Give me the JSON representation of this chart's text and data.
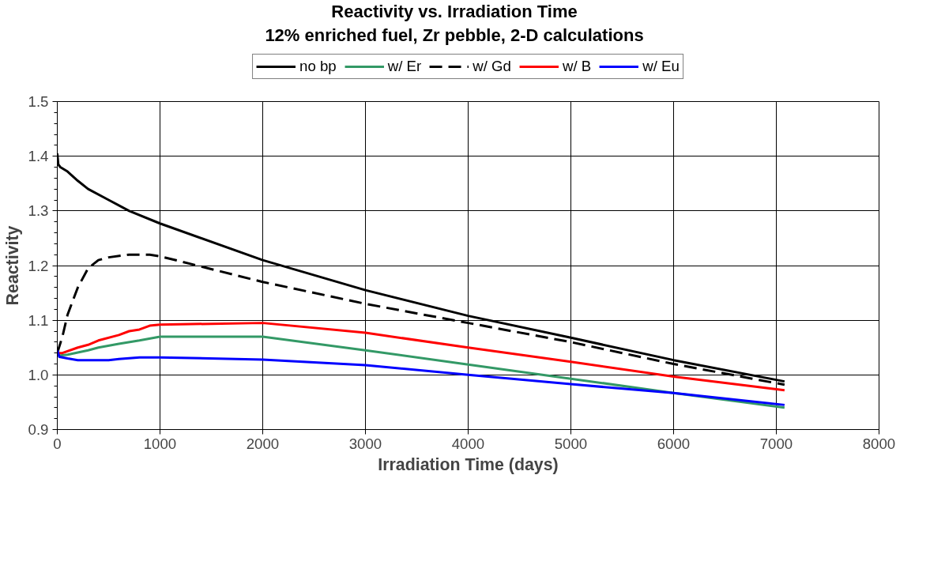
{
  "chart_data": {
    "type": "line",
    "title": "Reactivity vs. Irradiation Time",
    "subtitle": "12% enriched fuel, Zr pebble, 2-D calculations",
    "xlabel": "Irradiation Time (days)",
    "ylabel": "Reactivity",
    "xlim": [
      0,
      8000
    ],
    "xticks": [
      0,
      1000,
      2000,
      3000,
      4000,
      5000,
      6000,
      7000,
      8000
    ],
    "ylim": [
      0.9,
      1.5
    ],
    "yticks": [
      {
        "value": 0.9,
        "label": "0.9"
      },
      {
        "value": 1.0,
        "label": "1.0"
      },
      {
        "value": 1.1,
        "label": "1.1"
      },
      {
        "value": 1.2,
        "label": "1.2"
      },
      {
        "value": 1.3,
        "label": "1.3"
      },
      {
        "value": 1.4,
        "label": "1.4"
      },
      {
        "value": 1.5,
        "label": "1.5"
      }
    ],
    "grid": true,
    "legend": "top",
    "marker": "none",
    "series": [
      {
        "name": "no bp",
        "color": "#000000",
        "line_style": "solid",
        "x": [
          0,
          10,
          30,
          100,
          200,
          300,
          500,
          700,
          1000,
          2000,
          3000,
          4000,
          5000,
          6000,
          7080
        ],
        "values": [
          1.405,
          1.385,
          1.38,
          1.372,
          1.355,
          1.34,
          1.32,
          1.3,
          1.277,
          1.21,
          1.155,
          1.108,
          1.068,
          1.027,
          0.988
        ]
      },
      {
        "name": "w/ Er",
        "color": "#339966",
        "line_style": "solid",
        "x": [
          0,
          100,
          300,
          400,
          600,
          800,
          1000,
          2000,
          3000,
          4000,
          5000,
          6000,
          7080
        ],
        "values": [
          1.035,
          1.037,
          1.045,
          1.05,
          1.057,
          1.063,
          1.07,
          1.07,
          1.045,
          1.019,
          0.993,
          0.967,
          0.94
        ]
      },
      {
        "name": "w/ Gd",
        "color": "#000000",
        "line_style": "dashed",
        "x": [
          0,
          50,
          100,
          200,
          300,
          400,
          500,
          700,
          900,
          1000,
          2000,
          3000,
          4000,
          5000,
          6000,
          7080
        ],
        "values": [
          1.04,
          1.07,
          1.11,
          1.16,
          1.195,
          1.21,
          1.215,
          1.22,
          1.22,
          1.217,
          1.17,
          1.13,
          1.095,
          1.06,
          1.02,
          0.982
        ]
      },
      {
        "name": "w/ B",
        "color": "#ff0000",
        "line_style": "solid",
        "x": [
          0,
          50,
          200,
          300,
          400,
          600,
          700,
          800,
          900,
          1000,
          2000,
          3000,
          4000,
          5000,
          6000,
          7080
        ],
        "values": [
          1.04,
          1.04,
          1.05,
          1.055,
          1.063,
          1.073,
          1.08,
          1.083,
          1.09,
          1.092,
          1.095,
          1.077,
          1.05,
          1.024,
          0.997,
          0.972
        ]
      },
      {
        "name": "w/ Eu",
        "color": "#0000ff",
        "line_style": "solid",
        "x": [
          0,
          20,
          100,
          200,
          500,
          600,
          800,
          1000,
          2000,
          3000,
          4000,
          5000,
          6000,
          7080
        ],
        "values": [
          1.045,
          1.033,
          1.03,
          1.027,
          1.027,
          1.029,
          1.032,
          1.032,
          1.028,
          1.018,
          1.0,
          0.983,
          0.967,
          0.945
        ]
      }
    ]
  }
}
